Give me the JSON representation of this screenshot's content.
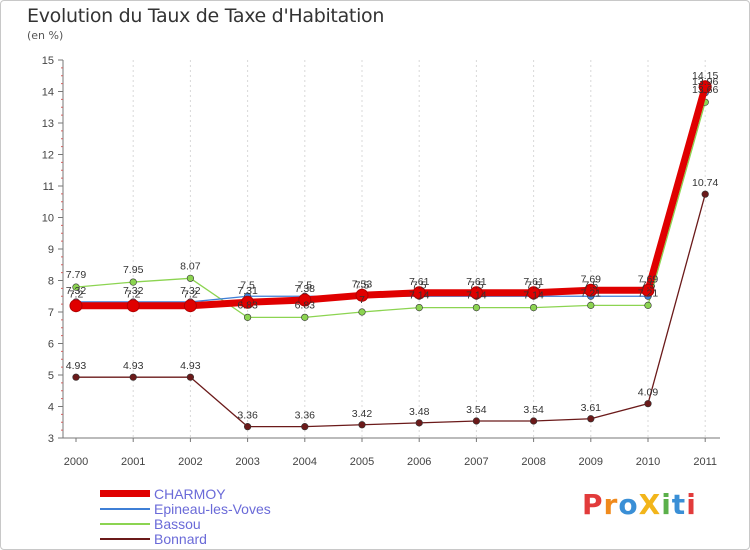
{
  "title": "Evolution du Taux de Taxe d'Habitation",
  "subtitle": "(en %)",
  "logo": {
    "text": "ProXiti",
    "letters": [
      "P",
      "r",
      "o",
      "X",
      "i",
      "t",
      "i"
    ],
    "colors": [
      "#e23b3b",
      "#f08a1c",
      "#3a8fd6",
      "#f2b51a",
      "#5bb04a",
      "#3a8fd6",
      "#e23b3b"
    ]
  },
  "chart_data": {
    "type": "line",
    "title": "Evolution du Taux de Taxe d'Habitation",
    "ylabel": "(en %)",
    "xlabel": "",
    "ylim": [
      3,
      15
    ],
    "yticks": [
      "3",
      "4",
      "5",
      "6",
      "7",
      "8",
      "9",
      "10",
      "11",
      "12",
      "13",
      "14",
      "15"
    ],
    "categories": [
      "2000",
      "2001",
      "2002",
      "2003",
      "2004",
      "2005",
      "2006",
      "2007",
      "2008",
      "2009",
      "2010",
      "2011"
    ],
    "series": [
      {
        "name": "CHARMOY",
        "color": "#e00000",
        "width": "thick",
        "values": [
          7.2,
          7.2,
          7.2,
          7.31,
          7.38,
          7.53,
          7.61,
          7.61,
          7.61,
          7.69,
          7.69,
          14.15
        ],
        "labels": [
          "7.2",
          "7.2",
          "7.2",
          "7.31",
          "7.38",
          "7.53",
          "7.61",
          "7.61",
          "7.61",
          "7.69",
          "7.69",
          "14.15"
        ]
      },
      {
        "name": "Epineau-les-Voves",
        "color": "#3f7fd6",
        "width": "thin",
        "values": [
          7.32,
          7.32,
          7.32,
          7.5,
          7.5,
          7.5,
          7.5,
          7.5,
          7.5,
          7.5,
          7.5,
          13.96
        ],
        "labels": [
          "7.32",
          "7.32",
          "7.32",
          "7.5",
          "7.5",
          "7.5",
          "7.5",
          "7.5",
          "7.5",
          "7.5",
          "7.5",
          "13.96"
        ]
      },
      {
        "name": "Bassou",
        "color": "#8cd451",
        "width": "thin",
        "values": [
          7.79,
          7.95,
          8.07,
          6.83,
          6.83,
          7.0,
          7.14,
          7.14,
          7.14,
          7.21,
          7.21,
          13.66
        ],
        "labels": [
          "7.79",
          "7.95",
          "8.07",
          "6.83",
          "6.83",
          "7",
          "7.14",
          "7.14",
          "7.14",
          "7.21",
          "7.21",
          "13.66"
        ]
      },
      {
        "name": "Bonnard",
        "color": "#6b1a1a",
        "width": "thin",
        "values": [
          4.93,
          4.93,
          4.93,
          3.36,
          3.36,
          3.42,
          3.48,
          3.54,
          3.54,
          3.61,
          4.09,
          10.74
        ],
        "labels": [
          "4.93",
          "4.93",
          "4.93",
          "3.36",
          "3.36",
          "3.42",
          "3.48",
          "3.54",
          "3.54",
          "3.61",
          "4.09",
          "10.74"
        ]
      }
    ]
  }
}
